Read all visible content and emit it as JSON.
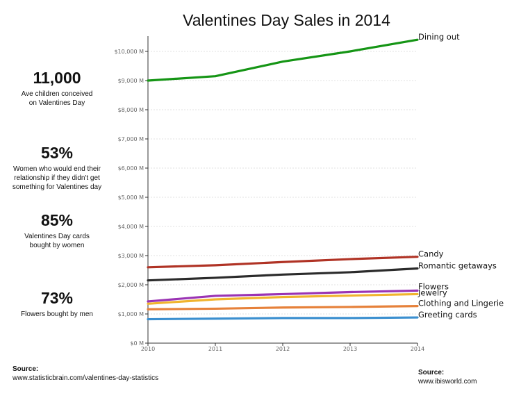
{
  "chart_data": {
    "type": "line",
    "title": "Valentines Day Sales in 2014",
    "x": [
      2010,
      2011,
      2012,
      2013,
      2014
    ],
    "xlim": [
      2010,
      2014
    ],
    "ylim": [
      0,
      10000
    ],
    "y_ticks": [
      0,
      1000,
      2000,
      3000,
      4000,
      5000,
      6000,
      7000,
      8000,
      9000,
      10000
    ],
    "y_tick_labels": [
      "$0 M",
      "$1,000 M",
      "$2,000 M",
      "$3,000 M",
      "$4,000 M",
      "$5,000 M",
      "$6,000 M",
      "$7,000 M",
      "$8,000 M",
      "$9,000 M",
      "$10,000 M"
    ],
    "x_tick_labels": [
      "2010",
      "2011",
      "2012",
      "2013",
      "2014"
    ],
    "grid": true,
    "series": [
      {
        "name": "Dining out",
        "color": "#159515",
        "values": [
          9000,
          9150,
          9650,
          10000,
          10400
        ]
      },
      {
        "name": "Candy",
        "color": "#b03325",
        "values": [
          2600,
          2670,
          2780,
          2880,
          2960
        ]
      },
      {
        "name": "Romantic getaways",
        "color": "#2b2b2b",
        "values": [
          2150,
          2240,
          2350,
          2430,
          2560
        ]
      },
      {
        "name": "Flowers",
        "color": "#9a34b4",
        "values": [
          1430,
          1620,
          1680,
          1750,
          1800
        ]
      },
      {
        "name": "Jewelry",
        "color": "#f0b42e",
        "values": [
          1350,
          1500,
          1580,
          1630,
          1680
        ]
      },
      {
        "name": "Clothing and Lingerie",
        "color": "#e6813a",
        "values": [
          1160,
          1180,
          1220,
          1240,
          1270
        ]
      },
      {
        "name": "Greeting cards",
        "color": "#3b8fcf",
        "values": [
          820,
          840,
          860,
          860,
          880
        ]
      }
    ]
  },
  "stats": [
    {
      "value": "11,000",
      "text": "Ave children conceived on Valentines Day"
    },
    {
      "value": "53%",
      "text": "Women who would end their relationship if they didn't get something for Valentines day"
    },
    {
      "value": "85%",
      "text": "Valentines Day cards bought by women"
    },
    {
      "value": "73%",
      "text": "Flowers bought by men"
    }
  ],
  "sources": {
    "left_label": "Source:",
    "left_url": "www.statisticbrain.com/valentines-day-statistics",
    "right_label": "Source:",
    "right_url": "www.ibisworld.com"
  }
}
